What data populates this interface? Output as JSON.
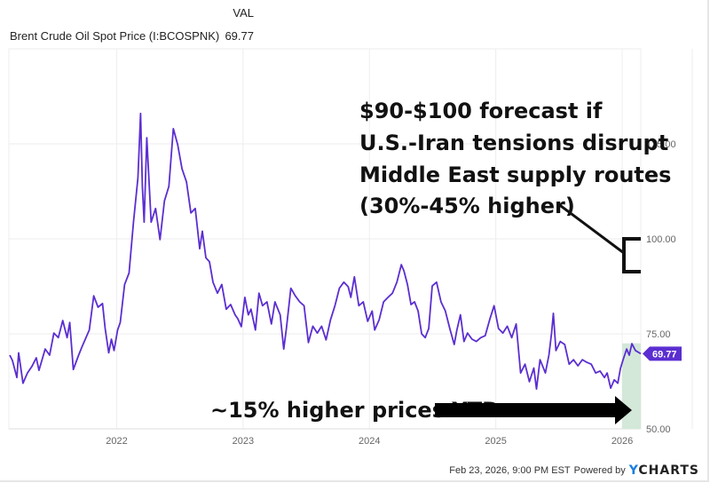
{
  "header": {
    "val_column_label": "VAL",
    "series_name": "Brent Crude Oil Spot Price (I:BCOSPNK)",
    "series_value": "69.77"
  },
  "footer": {
    "timestamp": "Feb 23, 2026, 9:00 PM EST",
    "powered_by": "Powered by",
    "brand_y": "Y",
    "brand_rest": "CHARTS"
  },
  "colors": {
    "line": "#5b2ed1",
    "price_tag": "#5b2ed1",
    "ytd_highlight": "#d3e8d8",
    "grid": "#eeeeee",
    "brand_accent": "#1a7fe0"
  },
  "annotations": {
    "forecast_lines": [
      "$90-$100 forecast if",
      "U.S.-Iran tensions disrupt",
      "Middle East supply routes",
      "(30%-45% higher)"
    ],
    "ytd_text": "~15% higher prices YTD",
    "forecast_range": [
      90,
      100
    ]
  },
  "chart_data": {
    "type": "line",
    "title": "",
    "xlabel": "",
    "ylabel": "",
    "series": [
      {
        "name": "Brent Crude Oil Spot Price (I:BCOSPNK)",
        "last_value": 69.77
      }
    ],
    "x_ticks": [
      "2022",
      "2023",
      "2024",
      "2025",
      "2026"
    ],
    "x_tick_values": [
      2022,
      2023,
      2024,
      2025,
      2026
    ],
    "y_ticks": [
      "50.00",
      "75.00",
      "100.00",
      "125.00"
    ],
    "y_tick_values": [
      50,
      75,
      100,
      125
    ],
    "xlim": [
      2021.147,
      2026.147
    ],
    "ylim": [
      50,
      150
    ],
    "grid": true,
    "y_axis_side": "right",
    "ytd_shaded_range": [
      2026.0,
      2026.147
    ],
    "points": [
      [
        2021.154,
        69.4
      ],
      [
        2021.175,
        68.0
      ],
      [
        2021.21,
        63.5
      ],
      [
        2021.224,
        70.0
      ],
      [
        2021.259,
        62.0
      ],
      [
        2021.294,
        64.7
      ],
      [
        2021.329,
        66.4
      ],
      [
        2021.364,
        68.7
      ],
      [
        2021.385,
        65.4
      ],
      [
        2021.434,
        71.0
      ],
      [
        2021.469,
        69.4
      ],
      [
        2021.503,
        75.2
      ],
      [
        2021.538,
        74.0
      ],
      [
        2021.573,
        78.5
      ],
      [
        2021.608,
        74.0
      ],
      [
        2021.629,
        78.0
      ],
      [
        2021.657,
        65.6
      ],
      [
        2021.699,
        69.4
      ],
      [
        2021.727,
        71.7
      ],
      [
        2021.783,
        76.0
      ],
      [
        2021.818,
        85.0
      ],
      [
        2021.853,
        82.0
      ],
      [
        2021.888,
        83.0
      ],
      [
        2021.909,
        76.4
      ],
      [
        2021.937,
        70.0
      ],
      [
        2021.958,
        73.6
      ],
      [
        2021.979,
        70.6
      ],
      [
        2022.007,
        76.0
      ],
      [
        2022.028,
        78.0
      ],
      [
        2022.063,
        88.0
      ],
      [
        2022.098,
        91.0
      ],
      [
        2022.133,
        104.4
      ],
      [
        2022.168,
        116.0
      ],
      [
        2022.189,
        133.0
      ],
      [
        2022.203,
        113.8
      ],
      [
        2022.217,
        104.4
      ],
      [
        2022.238,
        126.6
      ],
      [
        2022.273,
        104.4
      ],
      [
        2022.308,
        108.0
      ],
      [
        2022.343,
        99.8
      ],
      [
        2022.378,
        110.0
      ],
      [
        2022.413,
        113.8
      ],
      [
        2022.434,
        123.0
      ],
      [
        2022.448,
        129.0
      ],
      [
        2022.483,
        124.8
      ],
      [
        2022.517,
        118.4
      ],
      [
        2022.552,
        115.0
      ],
      [
        2022.587,
        106.8
      ],
      [
        2022.622,
        108.0
      ],
      [
        2022.657,
        97.4
      ],
      [
        2022.678,
        102.0
      ],
      [
        2022.706,
        95.0
      ],
      [
        2022.734,
        94.0
      ],
      [
        2022.762,
        88.6
      ],
      [
        2022.797,
        85.7
      ],
      [
        2022.832,
        88.0
      ],
      [
        2022.867,
        81.5
      ],
      [
        2022.902,
        82.7
      ],
      [
        2022.937,
        80.0
      ],
      [
        2022.958,
        79.0
      ],
      [
        2022.986,
        76.9
      ],
      [
        2023.014,
        84.6
      ],
      [
        2023.042,
        80.0
      ],
      [
        2023.063,
        81.5
      ],
      [
        2023.098,
        76.0
      ],
      [
        2023.126,
        85.7
      ],
      [
        2023.154,
        82.4
      ],
      [
        2023.189,
        83.4
      ],
      [
        2023.224,
        77.6
      ],
      [
        2023.252,
        83.4
      ],
      [
        2023.294,
        80.0
      ],
      [
        2023.322,
        71.0
      ],
      [
        2023.343,
        76.4
      ],
      [
        2023.378,
        87.0
      ],
      [
        2023.413,
        85.0
      ],
      [
        2023.448,
        83.4
      ],
      [
        2023.483,
        82.4
      ],
      [
        2023.517,
        72.7
      ],
      [
        2023.552,
        77.0
      ],
      [
        2023.587,
        75.2
      ],
      [
        2023.622,
        77.0
      ],
      [
        2023.657,
        73.4
      ],
      [
        2023.692,
        78.7
      ],
      [
        2023.727,
        82.4
      ],
      [
        2023.762,
        87.0
      ],
      [
        2023.797,
        88.6
      ],
      [
        2023.832,
        87.4
      ],
      [
        2023.853,
        84.6
      ],
      [
        2023.881,
        90.0
      ],
      [
        2023.916,
        82.4
      ],
      [
        2023.951,
        83.4
      ],
      [
        2023.986,
        78.3
      ],
      [
        2024.021,
        81.0
      ],
      [
        2024.042,
        76.0
      ],
      [
        2024.077,
        78.7
      ],
      [
        2024.112,
        83.4
      ],
      [
        2024.147,
        84.6
      ],
      [
        2024.182,
        85.7
      ],
      [
        2024.217,
        88.6
      ],
      [
        2024.252,
        93.2
      ],
      [
        2024.273,
        91.6
      ],
      [
        2024.301,
        88.0
      ],
      [
        2024.329,
        82.7
      ],
      [
        2024.357,
        83.4
      ],
      [
        2024.385,
        81.0
      ],
      [
        2024.413,
        75.0
      ],
      [
        2024.441,
        74.0
      ],
      [
        2024.469,
        76.4
      ],
      [
        2024.497,
        87.6
      ],
      [
        2024.531,
        88.6
      ],
      [
        2024.566,
        83.4
      ],
      [
        2024.601,
        81.0
      ],
      [
        2024.636,
        76.4
      ],
      [
        2024.671,
        72.2
      ],
      [
        2024.692,
        76.0
      ],
      [
        2024.72,
        80.0
      ],
      [
        2024.748,
        73.0
      ],
      [
        2024.776,
        75.2
      ],
      [
        2024.811,
        73.6
      ],
      [
        2024.846,
        73.0
      ],
      [
        2024.881,
        74.0
      ],
      [
        2024.916,
        74.5
      ],
      [
        2024.951,
        78.7
      ],
      [
        2024.986,
        82.4
      ],
      [
        2025.021,
        76.4
      ],
      [
        2025.056,
        75.2
      ],
      [
        2025.091,
        77.0
      ],
      [
        2025.126,
        74.0
      ],
      [
        2025.161,
        77.6
      ],
      [
        2025.196,
        64.7
      ],
      [
        2025.231,
        67.0
      ],
      [
        2025.266,
        62.4
      ],
      [
        2025.301,
        66.0
      ],
      [
        2025.322,
        60.5
      ],
      [
        2025.35,
        68.2
      ],
      [
        2025.392,
        64.7
      ],
      [
        2025.42,
        69.4
      ],
      [
        2025.441,
        75.2
      ],
      [
        2025.455,
        80.4
      ],
      [
        2025.476,
        70.6
      ],
      [
        2025.51,
        73.0
      ],
      [
        2025.545,
        72.2
      ],
      [
        2025.58,
        67.0
      ],
      [
        2025.615,
        68.2
      ],
      [
        2025.65,
        66.6
      ],
      [
        2025.685,
        68.2
      ],
      [
        2025.72,
        67.5
      ],
      [
        2025.755,
        67.0
      ],
      [
        2025.79,
        64.7
      ],
      [
        2025.825,
        65.2
      ],
      [
        2025.86,
        63.5
      ],
      [
        2025.881,
        64.7
      ],
      [
        2025.909,
        60.7
      ],
      [
        2025.937,
        62.9
      ],
      [
        2025.965,
        62.0
      ],
      [
        2025.986,
        65.9
      ],
      [
        2026.007,
        68.2
      ],
      [
        2026.035,
        71.0
      ],
      [
        2026.056,
        69.4
      ],
      [
        2026.077,
        72.4
      ],
      [
        2026.105,
        70.6
      ],
      [
        2026.147,
        69.77
      ]
    ]
  }
}
